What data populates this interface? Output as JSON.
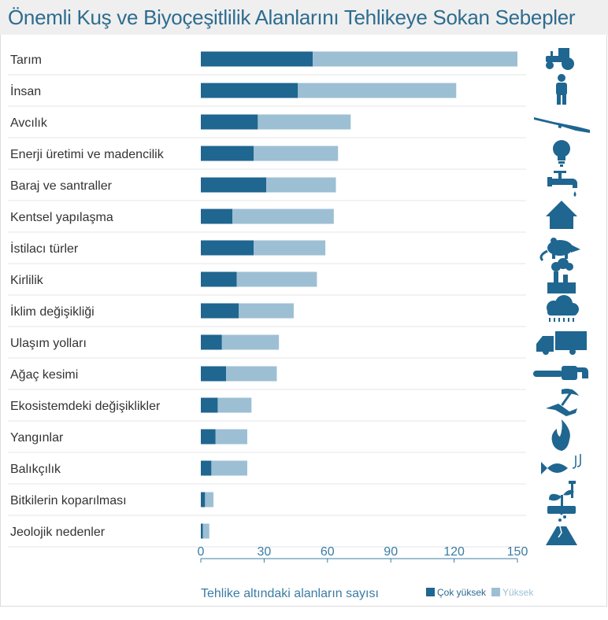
{
  "title": "Önemli Kuş ve Biyoçeşitlilik Alanlarını Tehlikeye Sokan Sebepler",
  "colors": {
    "very_high": "#1f6690",
    "high": "#9dbfd4",
    "icon": "#1f6690",
    "tick": "#3a7ca5"
  },
  "chart_data": {
    "type": "bar",
    "orientation": "horizontal",
    "stacked": true,
    "xlabel": "Tehlike altındaki alanların sayısı",
    "xlim": [
      0,
      150
    ],
    "xticks": [
      0,
      30,
      60,
      90,
      120,
      150
    ],
    "legend_position": "bottom-right",
    "categories": [
      "Tarım",
      "İnsan",
      "Avcılık",
      "Enerji üretimi ve madencilik",
      "Baraj ve santraller",
      "Kentsel yapılaşma",
      "İstilacı türler",
      "Kirlilik",
      "İklim değişikliği",
      "Ulaşım yolları",
      "Ağaç kesimi",
      "Ekosistemdeki değişiklikler",
      "Yangınlar",
      "Balıkçılık",
      "Bitkilerin koparılması",
      "Jeolojik nedenler"
    ],
    "icons": [
      "tractor-icon",
      "person-icon",
      "rifle-icon",
      "lightbulb-icon",
      "faucet-icon",
      "house-icon",
      "rat-icon",
      "factory-icon",
      "rain-cloud-icon",
      "truck-icon",
      "chainsaw-icon",
      "pickaxe-icon",
      "fire-icon",
      "fish-icon",
      "plant-icon",
      "volcano-icon"
    ],
    "series": [
      {
        "name": "Çok yüksek",
        "values": [
          53,
          46,
          27,
          25,
          31,
          15,
          25,
          17,
          18,
          10,
          12,
          8,
          7,
          5,
          2,
          1
        ]
      },
      {
        "name": "Yüksek",
        "values": [
          97,
          75,
          44,
          40,
          33,
          48,
          34,
          38,
          26,
          27,
          24,
          16,
          15,
          17,
          4,
          3
        ]
      }
    ]
  }
}
